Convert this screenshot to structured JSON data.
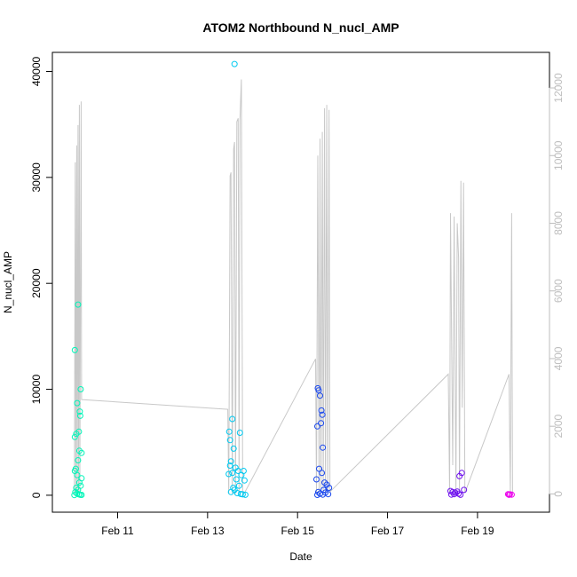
{
  "chart_data": {
    "type": "scatter",
    "title": "ATOM2 Northbound N_nucl_AMP",
    "xlabel": "Date",
    "ylabel": "N_nucl_AMP",
    "x_ticks": [
      "Feb 11",
      "Feb 13",
      "Feb 15",
      "Feb 17",
      "Feb 19"
    ],
    "x_tick_days": [
      11,
      13,
      15,
      17,
      19
    ],
    "xlim_days": [
      9.55,
      20.6
    ],
    "y_ticks": [
      "0",
      "10000",
      "20000",
      "30000",
      "40000"
    ],
    "y_tick_values": [
      0,
      10000,
      20000,
      30000,
      40000
    ],
    "ylim": [
      -1600,
      41800
    ],
    "y2_ticks": [
      "0",
      "2000",
      "4000",
      "6000",
      "8000",
      "10000",
      "12000"
    ],
    "y2_tick_values": [
      0,
      2000,
      4000,
      6000,
      8000,
      10000,
      12000
    ],
    "y2lim": [
      -540,
      13050
    ],
    "grid": false,
    "legend": "none",
    "point_series": [
      {
        "color": "#00f5b8",
        "points": [
          [
            10.05,
            13700
          ],
          [
            10.1,
            8700
          ],
          [
            10.12,
            18000
          ],
          [
            10.08,
            5800
          ],
          [
            10.14,
            6000
          ],
          [
            10.05,
            5500
          ],
          [
            10.18,
            10000
          ],
          [
            10.17,
            7500
          ],
          [
            10.16,
            7900
          ],
          [
            10.2,
            4000
          ],
          [
            10.15,
            4200
          ],
          [
            10.12,
            3300
          ],
          [
            10.07,
            2500
          ],
          [
            10.05,
            2300
          ],
          [
            10.1,
            1900
          ],
          [
            10.2,
            1600
          ],
          [
            10.15,
            1200
          ],
          [
            10.18,
            900
          ],
          [
            10.08,
            700
          ],
          [
            10.12,
            500
          ],
          [
            10.06,
            300
          ],
          [
            10.1,
            150
          ],
          [
            10.14,
            80
          ],
          [
            10.17,
            40
          ],
          [
            10.2,
            30
          ],
          [
            10.04,
            20
          ]
        ]
      },
      {
        "color": "#00c9f0",
        "points": [
          [
            13.6,
            40700
          ],
          [
            13.55,
            7200
          ],
          [
            13.48,
            6000
          ],
          [
            13.72,
            5900
          ],
          [
            13.5,
            5200
          ],
          [
            13.58,
            4400
          ],
          [
            13.52,
            3200
          ],
          [
            13.5,
            2800
          ],
          [
            13.62,
            2600
          ],
          [
            13.68,
            2300
          ],
          [
            13.55,
            2100
          ],
          [
            13.47,
            2000
          ],
          [
            13.75,
            1900
          ],
          [
            13.8,
            2300
          ],
          [
            13.82,
            1400
          ],
          [
            13.64,
            1500
          ],
          [
            13.7,
            900
          ],
          [
            13.57,
            700
          ],
          [
            13.6,
            500
          ],
          [
            13.52,
            300
          ],
          [
            13.66,
            200
          ],
          [
            13.74,
            120
          ],
          [
            13.78,
            80
          ],
          [
            13.84,
            40
          ]
        ]
      },
      {
        "color": "#1a48ee",
        "points": [
          [
            15.45,
            10100
          ],
          [
            15.47,
            9900
          ],
          [
            15.5,
            9400
          ],
          [
            15.53,
            8000
          ],
          [
            15.55,
            7600
          ],
          [
            15.52,
            6800
          ],
          [
            15.44,
            6500
          ],
          [
            15.56,
            4500
          ],
          [
            15.48,
            2500
          ],
          [
            15.54,
            2100
          ],
          [
            15.42,
            1500
          ],
          [
            15.6,
            1200
          ],
          [
            15.65,
            1000
          ],
          [
            15.7,
            700
          ],
          [
            15.58,
            500
          ],
          [
            15.46,
            300
          ],
          [
            15.62,
            250
          ],
          [
            15.5,
            150
          ],
          [
            15.68,
            100
          ],
          [
            15.56,
            60
          ],
          [
            15.44,
            30
          ]
        ]
      },
      {
        "color": "#6e10ee",
        "points": [
          [
            18.4,
            400
          ],
          [
            18.45,
            300
          ],
          [
            18.5,
            250
          ],
          [
            18.55,
            350
          ],
          [
            18.6,
            1800
          ],
          [
            18.65,
            2100
          ],
          [
            18.7,
            500
          ],
          [
            18.58,
            150
          ],
          [
            18.48,
            100
          ],
          [
            18.42,
            60
          ],
          [
            18.62,
            40
          ]
        ]
      },
      {
        "color": "#ec00ec",
        "points": [
          [
            19.68,
            100
          ],
          [
            19.72,
            80
          ],
          [
            19.76,
            60
          ],
          [
            19.7,
            40
          ]
        ]
      }
    ],
    "line_series": [
      {
        "color": "#c8c8c8",
        "axis": "right",
        "points": [
          [
            10.04,
            30
          ],
          [
            10.06,
            9800
          ],
          [
            10.07,
            40
          ],
          [
            10.09,
            10300
          ],
          [
            10.1,
            60
          ],
          [
            10.12,
            10900
          ],
          [
            10.13,
            50
          ],
          [
            10.15,
            11500
          ],
          [
            10.16,
            30
          ],
          [
            10.19,
            11600
          ],
          [
            10.2,
            2790
          ],
          [
            13.45,
            2500
          ],
          [
            13.47,
            11
          ],
          [
            13.5,
            9400
          ],
          [
            13.52,
            9500
          ],
          [
            13.55,
            15
          ],
          [
            13.58,
            10200
          ],
          [
            13.6,
            10400
          ],
          [
            13.62,
            10
          ],
          [
            13.65,
            11000
          ],
          [
            13.68,
            11100
          ],
          [
            13.7,
            20
          ],
          [
            13.72,
            11050
          ],
          [
            13.75,
            12250
          ],
          [
            13.78,
            20
          ],
          [
            13.82,
            30
          ],
          [
            15.4,
            3990
          ],
          [
            15.42,
            10
          ],
          [
            15.45,
            10000
          ],
          [
            15.48,
            20
          ],
          [
            15.5,
            10500
          ],
          [
            15.52,
            30
          ],
          [
            15.55,
            10700
          ],
          [
            15.57,
            20
          ],
          [
            15.6,
            11400
          ],
          [
            15.62,
            15
          ],
          [
            15.65,
            11500
          ],
          [
            15.67,
            25
          ],
          [
            15.7,
            11350
          ],
          [
            15.72,
            60
          ],
          [
            18.35,
            3540
          ],
          [
            18.38,
            15
          ],
          [
            18.4,
            8300
          ],
          [
            18.45,
            850
          ],
          [
            18.48,
            8200
          ],
          [
            18.52,
            20
          ],
          [
            18.55,
            8000
          ],
          [
            18.58,
            7000
          ],
          [
            18.6,
            20
          ],
          [
            18.63,
            9250
          ],
          [
            18.66,
            2550
          ],
          [
            18.69,
            9200
          ],
          [
            18.72,
            30
          ],
          [
            19.7,
            3540
          ],
          [
            19.73,
            20
          ],
          [
            19.76,
            8300
          ],
          [
            19.78,
            20
          ]
        ]
      }
    ]
  }
}
